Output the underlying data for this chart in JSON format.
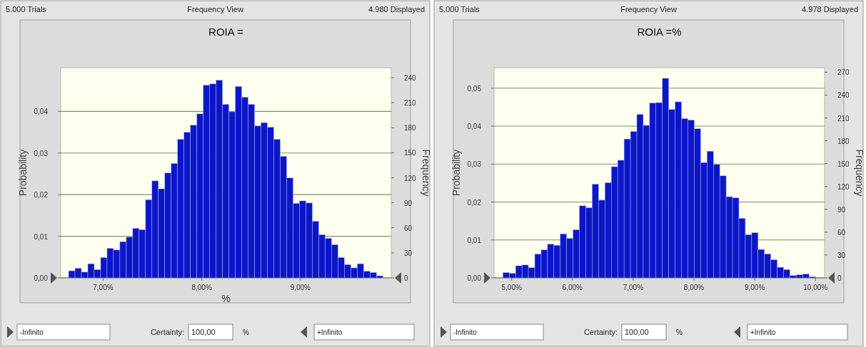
{
  "chart_data": [
    {
      "type": "histogram",
      "title": "ROIA =",
      "xlabel": "%",
      "ylabel": "Probability",
      "y2label": "Frequency",
      "color": "#0c16c8",
      "grid": "y",
      "annotations": [
        "5.000 Trials",
        "Frequency View",
        "4.980 Displayed",
        "-Infinito",
        "Certainty:",
        "100,00",
        "%",
        "+Infinito"
      ],
      "xlim": [
        6.57,
        9.92
      ],
      "xticks": [
        {
          "value": 7,
          "label": "7,00%"
        },
        {
          "value": 8,
          "label": "8,00%"
        },
        {
          "value": 9,
          "label": "9,00%"
        }
      ],
      "ylim": [
        0,
        0.0505
      ],
      "yticks": [
        {
          "value": 0,
          "label": "0,00"
        },
        {
          "value": 0.01,
          "label": "0,01"
        },
        {
          "value": 0.02,
          "label": "0,02"
        },
        {
          "value": 0.03,
          "label": "0,03"
        },
        {
          "value": 0.04,
          "label": "0,04"
        }
      ],
      "y2lim": [
        0,
        252
      ],
      "y2ticks": [
        0,
        30,
        60,
        90,
        120,
        150,
        180,
        210,
        240
      ],
      "bins": [
        6.65,
        6.715,
        6.78,
        6.845,
        6.91,
        6.975,
        7.04,
        7.105,
        7.17,
        7.235,
        7.3,
        7.365,
        7.43,
        7.495,
        7.56,
        7.625,
        7.69,
        7.755,
        7.82,
        7.885,
        7.95,
        8.015,
        8.08,
        8.145,
        8.21,
        8.275,
        8.34,
        8.405,
        8.47,
        8.535,
        8.6,
        8.665,
        8.73,
        8.795,
        8.86,
        8.925,
        8.99,
        9.055,
        9.12,
        9.185,
        9.25,
        9.315,
        9.38,
        9.445,
        9.51,
        9.575,
        9.64,
        9.705,
        9.77,
        9.835
      ],
      "values": [
        0.0017,
        0.0023,
        0.0014,
        0.0034,
        0.002,
        0.0049,
        0.0071,
        0.0067,
        0.0087,
        0.0098,
        0.0119,
        0.0116,
        0.0188,
        0.0233,
        0.0214,
        0.0252,
        0.0275,
        0.0333,
        0.035,
        0.0367,
        0.0394,
        0.0463,
        0.0466,
        0.0475,
        0.0417,
        0.0399,
        0.046,
        0.0434,
        0.0417,
        0.0365,
        0.0373,
        0.0362,
        0.0333,
        0.0292,
        0.024,
        0.0179,
        0.0185,
        0.018,
        0.0136,
        0.0104,
        0.0095,
        0.008,
        0.0049,
        0.0032,
        0.0024,
        0.0034,
        0.0016,
        0.0013,
        0.0005
      ]
    },
    {
      "type": "histogram",
      "title": "ROIA =%",
      "ylabel": "Probability",
      "y2label": "Frequency",
      "color": "#0c16c8",
      "grid": "y",
      "annotations": [
        "5.000 Trials",
        "Frequency View",
        "4.978 Displayed",
        "-Infinito",
        "Certainty:",
        "100,00",
        "%",
        "+Infinito"
      ],
      "xlim": [
        4.71,
        10.15
      ],
      "xticks": [
        {
          "value": 5,
          "label": "5,00%"
        },
        {
          "value": 6,
          "label": "6,00%"
        },
        {
          "value": 7,
          "label": "7,00%"
        },
        {
          "value": 8,
          "label": "8,00%"
        },
        {
          "value": 9,
          "label": "9,00%"
        },
        {
          "value": 10,
          "label": "10,00%"
        }
      ],
      "ylim": [
        0,
        0.0554
      ],
      "yticks": [
        {
          "value": 0,
          "label": "0,00"
        },
        {
          "value": 0.01,
          "label": "0,01"
        },
        {
          "value": 0.02,
          "label": "0,02"
        },
        {
          "value": 0.03,
          "label": "0,03"
        },
        {
          "value": 0.04,
          "label": "0,04"
        },
        {
          "value": 0.05,
          "label": "0,05"
        }
      ],
      "y2lim": [
        0,
        276
      ],
      "y2ticks": [
        0,
        30,
        60,
        90,
        120,
        150,
        180,
        210,
        240,
        270
      ],
      "bins": [
        4.855,
        4.96,
        5.065,
        5.17,
        5.275,
        5.38,
        5.485,
        5.59,
        5.695,
        5.8,
        5.905,
        6.01,
        6.115,
        6.22,
        6.325,
        6.43,
        6.535,
        6.64,
        6.745,
        6.85,
        6.955,
        7.06,
        7.165,
        7.27,
        7.375,
        7.48,
        7.585,
        7.69,
        7.795,
        7.9,
        8.005,
        8.11,
        8.215,
        8.32,
        8.425,
        8.53,
        8.635,
        8.74,
        8.845,
        8.95,
        9.055,
        9.16,
        9.265,
        9.37,
        9.475,
        9.58,
        9.685,
        9.79,
        9.895,
        10.0
      ],
      "values": [
        0.0014,
        0.0012,
        0.0032,
        0.0034,
        0.0027,
        0.0063,
        0.0074,
        0.0089,
        0.0086,
        0.0116,
        0.0104,
        0.0127,
        0.019,
        0.0185,
        0.0247,
        0.0205,
        0.0251,
        0.0293,
        0.031,
        0.0366,
        0.0386,
        0.0431,
        0.0402,
        0.0461,
        0.0462,
        0.0526,
        0.0444,
        0.0464,
        0.042,
        0.0416,
        0.0393,
        0.0304,
        0.0334,
        0.0299,
        0.0269,
        0.0214,
        0.0211,
        0.0157,
        0.0114,
        0.0119,
        0.0075,
        0.0063,
        0.0048,
        0.0028,
        0.0022,
        0.0006,
        0.0008,
        0.001,
        0.0003
      ]
    }
  ]
}
